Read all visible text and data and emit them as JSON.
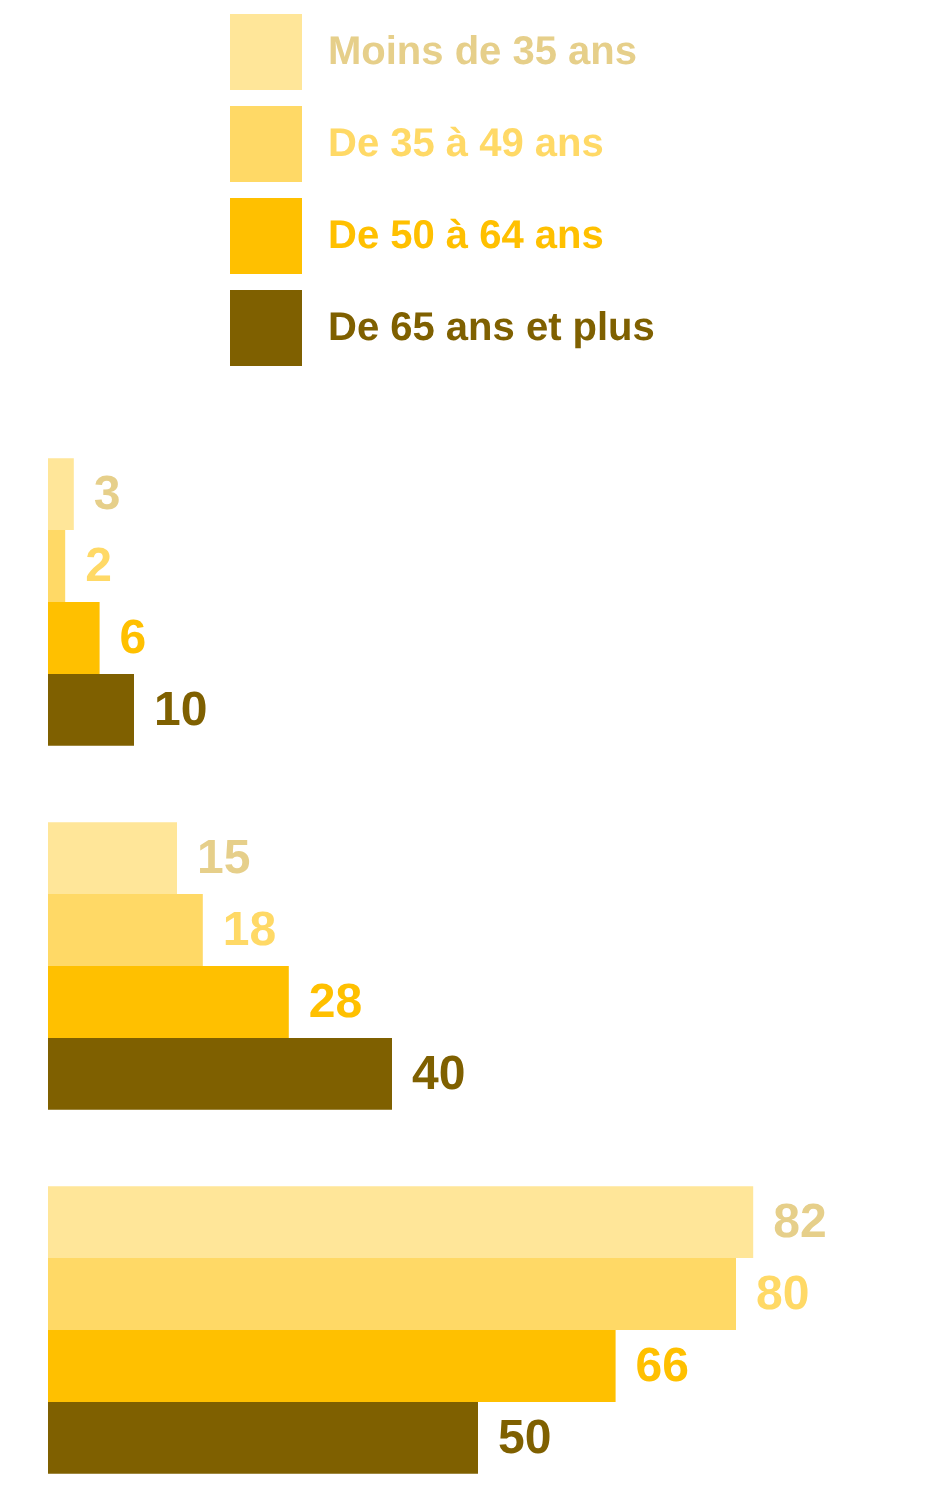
{
  "chart_data": {
    "type": "bar",
    "orientation": "horizontal",
    "categories": [
      null,
      null,
      null
    ],
    "series": [
      {
        "name": "Moins de 35 ans",
        "color": "#ffe699",
        "values": [
          3,
          15,
          82
        ]
      },
      {
        "name": "De 35 à 49 ans",
        "color": "#ffd966",
        "values": [
          2,
          18,
          80
        ]
      },
      {
        "name": "De 50 à 64 ans",
        "color": "#ffc000",
        "values": [
          6,
          28,
          66
        ]
      },
      {
        "name": "De 65 ans et plus",
        "color": "#7f6000",
        "values": [
          10,
          40,
          50
        ]
      }
    ],
    "data_labels": true,
    "legend": "top",
    "grid": false,
    "tick_labels": false
  }
}
